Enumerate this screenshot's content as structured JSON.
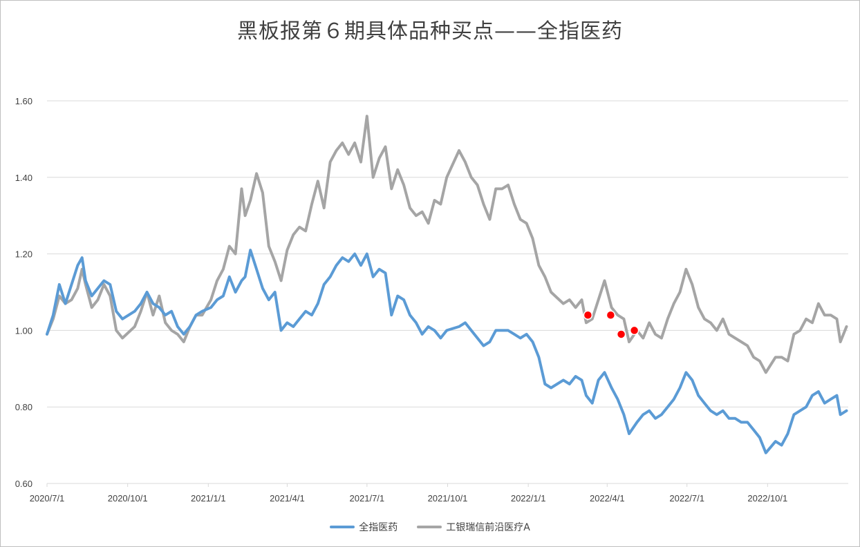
{
  "colors": {
    "series1": "#5b9bd5",
    "series2": "#a5a5a5",
    "marker": "#ff0000",
    "grid": "#d9d9d9"
  },
  "chart_data": {
    "type": "line",
    "title": "黑板报第６期具体品种买点——全指医药",
    "xlabel": "",
    "ylabel": "",
    "ylim": [
      0.6,
      1.6
    ],
    "grid": true,
    "legend_position": "bottom",
    "y_ticks": [
      "0.60",
      "0.80",
      "1.00",
      "1.20",
      "1.40",
      "1.60"
    ],
    "x_tick_labels": [
      "2020/7/1",
      "2020/10/1",
      "2021/1/1",
      "2021/4/1",
      "2021/7/1",
      "2021/10/1",
      "2022/1/1",
      "2022/4/1",
      "2022/7/1",
      "2022/10/1"
    ],
    "x_tick_dates": [
      "2020-07-01",
      "2020-10-01",
      "2021-01-01",
      "2021-04-01",
      "2021-07-01",
      "2021-10-01",
      "2022-01-01",
      "2022-04-01",
      "2022-07-01",
      "2022-10-01"
    ],
    "x_range": [
      "2020-07-01",
      "2023-01-01"
    ],
    "series": [
      {
        "name": "全指医药",
        "points": [
          [
            "2020-07-01",
            0.99
          ],
          [
            "2020-07-08",
            1.04
          ],
          [
            "2020-07-15",
            1.12
          ],
          [
            "2020-07-22",
            1.07
          ],
          [
            "2020-07-29",
            1.12
          ],
          [
            "2020-08-05",
            1.17
          ],
          [
            "2020-08-10",
            1.19
          ],
          [
            "2020-08-14",
            1.13
          ],
          [
            "2020-08-21",
            1.09
          ],
          [
            "2020-08-28",
            1.11
          ],
          [
            "2020-09-04",
            1.13
          ],
          [
            "2020-09-11",
            1.12
          ],
          [
            "2020-09-18",
            1.05
          ],
          [
            "2020-09-25",
            1.03
          ],
          [
            "2020-10-09",
            1.05
          ],
          [
            "2020-10-16",
            1.07
          ],
          [
            "2020-10-23",
            1.1
          ],
          [
            "2020-10-30",
            1.07
          ],
          [
            "2020-11-06",
            1.06
          ],
          [
            "2020-11-13",
            1.04
          ],
          [
            "2020-11-20",
            1.05
          ],
          [
            "2020-11-27",
            1.01
          ],
          [
            "2020-12-04",
            0.99
          ],
          [
            "2020-12-11",
            1.01
          ],
          [
            "2020-12-18",
            1.04
          ],
          [
            "2020-12-25",
            1.05
          ],
          [
            "2021-01-04",
            1.06
          ],
          [
            "2021-01-11",
            1.08
          ],
          [
            "2021-01-18",
            1.09
          ],
          [
            "2021-01-25",
            1.14
          ],
          [
            "2021-02-01",
            1.1
          ],
          [
            "2021-02-08",
            1.13
          ],
          [
            "2021-02-12",
            1.14
          ],
          [
            "2021-02-18",
            1.21
          ],
          [
            "2021-02-25",
            1.16
          ],
          [
            "2021-03-04",
            1.11
          ],
          [
            "2021-03-11",
            1.08
          ],
          [
            "2021-03-18",
            1.1
          ],
          [
            "2021-03-25",
            1.0
          ],
          [
            "2021-04-01",
            1.02
          ],
          [
            "2021-04-08",
            1.01
          ],
          [
            "2021-04-15",
            1.03
          ],
          [
            "2021-04-22",
            1.05
          ],
          [
            "2021-04-29",
            1.04
          ],
          [
            "2021-05-06",
            1.07
          ],
          [
            "2021-05-13",
            1.12
          ],
          [
            "2021-05-20",
            1.14
          ],
          [
            "2021-05-27",
            1.17
          ],
          [
            "2021-06-03",
            1.19
          ],
          [
            "2021-06-10",
            1.18
          ],
          [
            "2021-06-17",
            1.2
          ],
          [
            "2021-06-24",
            1.17
          ],
          [
            "2021-07-01",
            1.2
          ],
          [
            "2021-07-08",
            1.14
          ],
          [
            "2021-07-15",
            1.16
          ],
          [
            "2021-07-22",
            1.15
          ],
          [
            "2021-07-29",
            1.04
          ],
          [
            "2021-08-05",
            1.09
          ],
          [
            "2021-08-12",
            1.08
          ],
          [
            "2021-08-19",
            1.04
          ],
          [
            "2021-08-26",
            1.02
          ],
          [
            "2021-09-02",
            0.99
          ],
          [
            "2021-09-09",
            1.01
          ],
          [
            "2021-09-16",
            1.0
          ],
          [
            "2021-09-23",
            0.98
          ],
          [
            "2021-09-30",
            1.0
          ],
          [
            "2021-10-14",
            1.01
          ],
          [
            "2021-10-21",
            1.02
          ],
          [
            "2021-10-28",
            1.0
          ],
          [
            "2021-11-04",
            0.98
          ],
          [
            "2021-11-11",
            0.96
          ],
          [
            "2021-11-18",
            0.97
          ],
          [
            "2021-11-25",
            1.0
          ],
          [
            "2021-12-02",
            1.0
          ],
          [
            "2021-12-09",
            1.0
          ],
          [
            "2021-12-16",
            0.99
          ],
          [
            "2021-12-23",
            0.98
          ],
          [
            "2021-12-30",
            0.99
          ],
          [
            "2022-01-06",
            0.97
          ],
          [
            "2022-01-13",
            0.93
          ],
          [
            "2022-01-20",
            0.86
          ],
          [
            "2022-01-27",
            0.85
          ],
          [
            "2022-02-10",
            0.87
          ],
          [
            "2022-02-17",
            0.86
          ],
          [
            "2022-02-24",
            0.88
          ],
          [
            "2022-03-03",
            0.87
          ],
          [
            "2022-03-08",
            0.83
          ],
          [
            "2022-03-15",
            0.81
          ],
          [
            "2022-03-22",
            0.87
          ],
          [
            "2022-03-29",
            0.89
          ],
          [
            "2022-04-06",
            0.85
          ],
          [
            "2022-04-13",
            0.82
          ],
          [
            "2022-04-20",
            0.78
          ],
          [
            "2022-04-26",
            0.73
          ],
          [
            "2022-05-05",
            0.76
          ],
          [
            "2022-05-12",
            0.78
          ],
          [
            "2022-05-19",
            0.79
          ],
          [
            "2022-05-26",
            0.77
          ],
          [
            "2022-06-02",
            0.78
          ],
          [
            "2022-06-09",
            0.8
          ],
          [
            "2022-06-16",
            0.82
          ],
          [
            "2022-06-23",
            0.85
          ],
          [
            "2022-06-30",
            0.89
          ],
          [
            "2022-07-07",
            0.87
          ],
          [
            "2022-07-14",
            0.83
          ],
          [
            "2022-07-21",
            0.81
          ],
          [
            "2022-07-28",
            0.79
          ],
          [
            "2022-08-04",
            0.78
          ],
          [
            "2022-08-11",
            0.79
          ],
          [
            "2022-08-18",
            0.77
          ],
          [
            "2022-08-25",
            0.77
          ],
          [
            "2022-09-01",
            0.76
          ],
          [
            "2022-09-08",
            0.76
          ],
          [
            "2022-09-15",
            0.74
          ],
          [
            "2022-09-22",
            0.72
          ],
          [
            "2022-09-29",
            0.68
          ],
          [
            "2022-10-10",
            0.71
          ],
          [
            "2022-10-17",
            0.7
          ],
          [
            "2022-10-24",
            0.73
          ],
          [
            "2022-10-31",
            0.78
          ],
          [
            "2022-11-07",
            0.79
          ],
          [
            "2022-11-14",
            0.8
          ],
          [
            "2022-11-21",
            0.83
          ],
          [
            "2022-11-28",
            0.84
          ],
          [
            "2022-12-05",
            0.81
          ],
          [
            "2022-12-12",
            0.82
          ],
          [
            "2022-12-19",
            0.83
          ],
          [
            "2022-12-23",
            0.78
          ],
          [
            "2022-12-30",
            0.79
          ]
        ]
      },
      {
        "name": "工银瑞信前沿医疗A",
        "points": [
          [
            "2020-07-01",
            0.99
          ],
          [
            "2020-07-08",
            1.03
          ],
          [
            "2020-07-15",
            1.09
          ],
          [
            "2020-07-22",
            1.07
          ],
          [
            "2020-07-29",
            1.08
          ],
          [
            "2020-08-05",
            1.11
          ],
          [
            "2020-08-10",
            1.16
          ],
          [
            "2020-08-14",
            1.12
          ],
          [
            "2020-08-21",
            1.06
          ],
          [
            "2020-08-28",
            1.08
          ],
          [
            "2020-09-04",
            1.12
          ],
          [
            "2020-09-11",
            1.09
          ],
          [
            "2020-09-18",
            1.0
          ],
          [
            "2020-09-25",
            0.98
          ],
          [
            "2020-10-09",
            1.01
          ],
          [
            "2020-10-16",
            1.05
          ],
          [
            "2020-10-23",
            1.1
          ],
          [
            "2020-10-30",
            1.04
          ],
          [
            "2020-11-06",
            1.09
          ],
          [
            "2020-11-13",
            1.02
          ],
          [
            "2020-11-20",
            1.0
          ],
          [
            "2020-11-27",
            0.99
          ],
          [
            "2020-12-04",
            0.97
          ],
          [
            "2020-12-11",
            1.01
          ],
          [
            "2020-12-18",
            1.04
          ],
          [
            "2020-12-25",
            1.04
          ],
          [
            "2021-01-04",
            1.08
          ],
          [
            "2021-01-11",
            1.13
          ],
          [
            "2021-01-18",
            1.16
          ],
          [
            "2021-01-25",
            1.22
          ],
          [
            "2021-02-01",
            1.2
          ],
          [
            "2021-02-08",
            1.37
          ],
          [
            "2021-02-12",
            1.3
          ],
          [
            "2021-02-18",
            1.34
          ],
          [
            "2021-02-25",
            1.41
          ],
          [
            "2021-03-04",
            1.36
          ],
          [
            "2021-03-11",
            1.22
          ],
          [
            "2021-03-18",
            1.18
          ],
          [
            "2021-03-25",
            1.13
          ],
          [
            "2021-04-01",
            1.21
          ],
          [
            "2021-04-08",
            1.25
          ],
          [
            "2021-04-15",
            1.27
          ],
          [
            "2021-04-22",
            1.26
          ],
          [
            "2021-04-29",
            1.33
          ],
          [
            "2021-05-06",
            1.39
          ],
          [
            "2021-05-13",
            1.32
          ],
          [
            "2021-05-20",
            1.44
          ],
          [
            "2021-05-27",
            1.47
          ],
          [
            "2021-06-03",
            1.49
          ],
          [
            "2021-06-10",
            1.46
          ],
          [
            "2021-06-17",
            1.49
          ],
          [
            "2021-06-24",
            1.44
          ],
          [
            "2021-07-01",
            1.56
          ],
          [
            "2021-07-08",
            1.4
          ],
          [
            "2021-07-15",
            1.45
          ],
          [
            "2021-07-22",
            1.48
          ],
          [
            "2021-07-29",
            1.37
          ],
          [
            "2021-08-05",
            1.42
          ],
          [
            "2021-08-12",
            1.38
          ],
          [
            "2021-08-19",
            1.32
          ],
          [
            "2021-08-26",
            1.3
          ],
          [
            "2021-09-02",
            1.31
          ],
          [
            "2021-09-09",
            1.28
          ],
          [
            "2021-09-16",
            1.34
          ],
          [
            "2021-09-23",
            1.33
          ],
          [
            "2021-09-30",
            1.4
          ],
          [
            "2021-10-14",
            1.47
          ],
          [
            "2021-10-21",
            1.44
          ],
          [
            "2021-10-28",
            1.4
          ],
          [
            "2021-11-04",
            1.38
          ],
          [
            "2021-11-11",
            1.33
          ],
          [
            "2021-11-18",
            1.29
          ],
          [
            "2021-11-25",
            1.37
          ],
          [
            "2021-12-02",
            1.37
          ],
          [
            "2021-12-09",
            1.38
          ],
          [
            "2021-12-16",
            1.33
          ],
          [
            "2021-12-23",
            1.29
          ],
          [
            "2021-12-30",
            1.28
          ],
          [
            "2022-01-06",
            1.24
          ],
          [
            "2022-01-13",
            1.17
          ],
          [
            "2022-01-20",
            1.14
          ],
          [
            "2022-01-27",
            1.1
          ],
          [
            "2022-02-10",
            1.07
          ],
          [
            "2022-02-17",
            1.08
          ],
          [
            "2022-02-24",
            1.06
          ],
          [
            "2022-03-03",
            1.08
          ],
          [
            "2022-03-08",
            1.02
          ],
          [
            "2022-03-15",
            1.03
          ],
          [
            "2022-03-22",
            1.08
          ],
          [
            "2022-03-29",
            1.13
          ],
          [
            "2022-04-06",
            1.06
          ],
          [
            "2022-04-13",
            1.04
          ],
          [
            "2022-04-20",
            1.03
          ],
          [
            "2022-04-26",
            0.97
          ],
          [
            "2022-05-05",
            1.0
          ],
          [
            "2022-05-12",
            0.98
          ],
          [
            "2022-05-19",
            1.02
          ],
          [
            "2022-05-26",
            0.99
          ],
          [
            "2022-06-02",
            0.98
          ],
          [
            "2022-06-09",
            1.03
          ],
          [
            "2022-06-16",
            1.07
          ],
          [
            "2022-06-23",
            1.1
          ],
          [
            "2022-06-30",
            1.16
          ],
          [
            "2022-07-07",
            1.12
          ],
          [
            "2022-07-14",
            1.06
          ],
          [
            "2022-07-21",
            1.03
          ],
          [
            "2022-07-28",
            1.02
          ],
          [
            "2022-08-04",
            1.0
          ],
          [
            "2022-08-11",
            1.03
          ],
          [
            "2022-08-18",
            0.99
          ],
          [
            "2022-08-25",
            0.98
          ],
          [
            "2022-09-01",
            0.97
          ],
          [
            "2022-09-08",
            0.96
          ],
          [
            "2022-09-15",
            0.93
          ],
          [
            "2022-09-22",
            0.92
          ],
          [
            "2022-09-29",
            0.89
          ],
          [
            "2022-10-10",
            0.93
          ],
          [
            "2022-10-17",
            0.93
          ],
          [
            "2022-10-24",
            0.92
          ],
          [
            "2022-10-31",
            0.99
          ],
          [
            "2022-11-07",
            1.0
          ],
          [
            "2022-11-14",
            1.03
          ],
          [
            "2022-11-21",
            1.02
          ],
          [
            "2022-11-28",
            1.07
          ],
          [
            "2022-12-05",
            1.04
          ],
          [
            "2022-12-12",
            1.04
          ],
          [
            "2022-12-19",
            1.03
          ],
          [
            "2022-12-23",
            0.97
          ],
          [
            "2022-12-30",
            1.01
          ]
        ]
      }
    ],
    "markers": [
      [
        "2022-03-10",
        1.04
      ],
      [
        "2022-04-05",
        1.04
      ],
      [
        "2022-04-17",
        0.99
      ],
      [
        "2022-05-02",
        1.0
      ]
    ]
  }
}
